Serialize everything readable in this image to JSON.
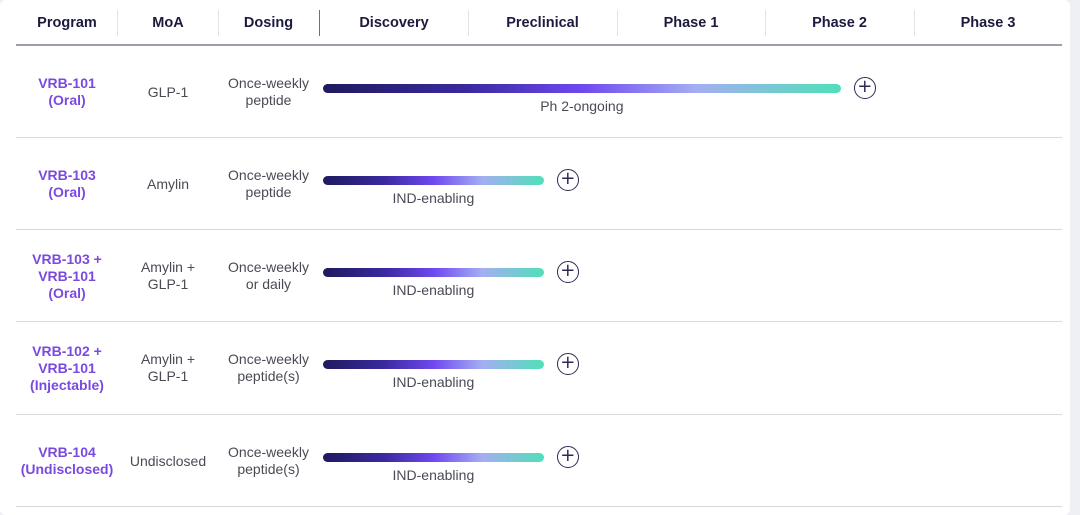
{
  "chart_data": {
    "type": "table",
    "columns": [
      "Program",
      "MoA",
      "Dosing",
      "Discovery",
      "Preclinical",
      "Phase 1",
      "Phase 2",
      "Phase 3"
    ],
    "stages": [
      "Discovery",
      "Preclinical",
      "Phase 1",
      "Phase 2",
      "Phase 3"
    ],
    "rows": [
      {
        "program": [
          "VRB-101",
          "(Oral)"
        ],
        "moa": [
          "GLP-1"
        ],
        "dosing": [
          "Once-weekly",
          "peptide"
        ],
        "status": "Ph 2-ongoing",
        "progress": 3.5
      },
      {
        "program": [
          "VRB-103",
          "(Oral)"
        ],
        "moa": [
          "Amylin"
        ],
        "dosing": [
          "Once-weekly",
          "peptide"
        ],
        "status": "IND-enabling",
        "progress": 1.5
      },
      {
        "program": [
          "VRB-103 +",
          "VRB-101",
          "(Oral)"
        ],
        "moa": [
          "Amylin +",
          "GLP-1"
        ],
        "dosing": [
          "Once-weekly",
          "or daily"
        ],
        "status": "IND-enabling",
        "progress": 1.5
      },
      {
        "program": [
          "VRB-102 +",
          "VRB-101",
          "(Injectable)"
        ],
        "moa": [
          "Amylin +",
          "GLP-1"
        ],
        "dosing": [
          "Once-weekly",
          "peptide(s)"
        ],
        "status": "IND-enabling",
        "progress": 1.5
      },
      {
        "program": [
          "VRB-104",
          "(Undisclosed)"
        ],
        "moa": [
          "Undisclosed"
        ],
        "dosing": [
          "Once-weekly",
          "peptide(s)"
        ],
        "status": "IND-enabling",
        "progress": 1.5
      }
    ],
    "colors": {
      "program_text": "#7a4ae0",
      "bar_start": "#1f1a5e",
      "bar_mid": "#6f48f0",
      "bar_end": "#4fe0b8"
    }
  }
}
